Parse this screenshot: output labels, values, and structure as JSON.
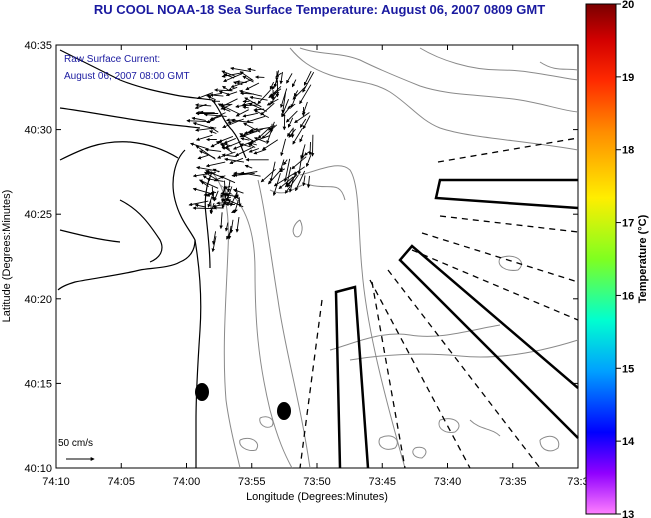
{
  "title": "RU COOL  NOAA-18  Sea Surface Temperature:  August 06, 2007 0809 GMT",
  "annotation": {
    "line1": "Raw Surface Current:",
    "line2": "August 06, 2007 08:00 GMT"
  },
  "scale_label": "50 cm/s",
  "axes": {
    "xlabel": "Longitude (Degrees:Minutes)",
    "ylabel": "Latitude (Degrees:Minutes)",
    "x_ticks": [
      "74:10",
      "74:05",
      "74:00",
      "73:55",
      "73:50",
      "73:45",
      "73:40",
      "73:35",
      "73:3"
    ],
    "y_ticks": [
      "40:35",
      "40:30",
      "40:25",
      "40:20",
      "40:15",
      "40:10"
    ]
  },
  "colorbar": {
    "label": "Temperature (°C)",
    "ticks": [
      "20",
      "19",
      "18",
      "17",
      "16",
      "15",
      "14",
      "13"
    ],
    "min": 13,
    "max": 20,
    "colors": [
      "#8b0000",
      "#ff0000",
      "#ff8c00",
      "#ffff00",
      "#7fff00",
      "#00ffff",
      "#0000ff",
      "#8000ff",
      "#ff80ff"
    ]
  }
}
